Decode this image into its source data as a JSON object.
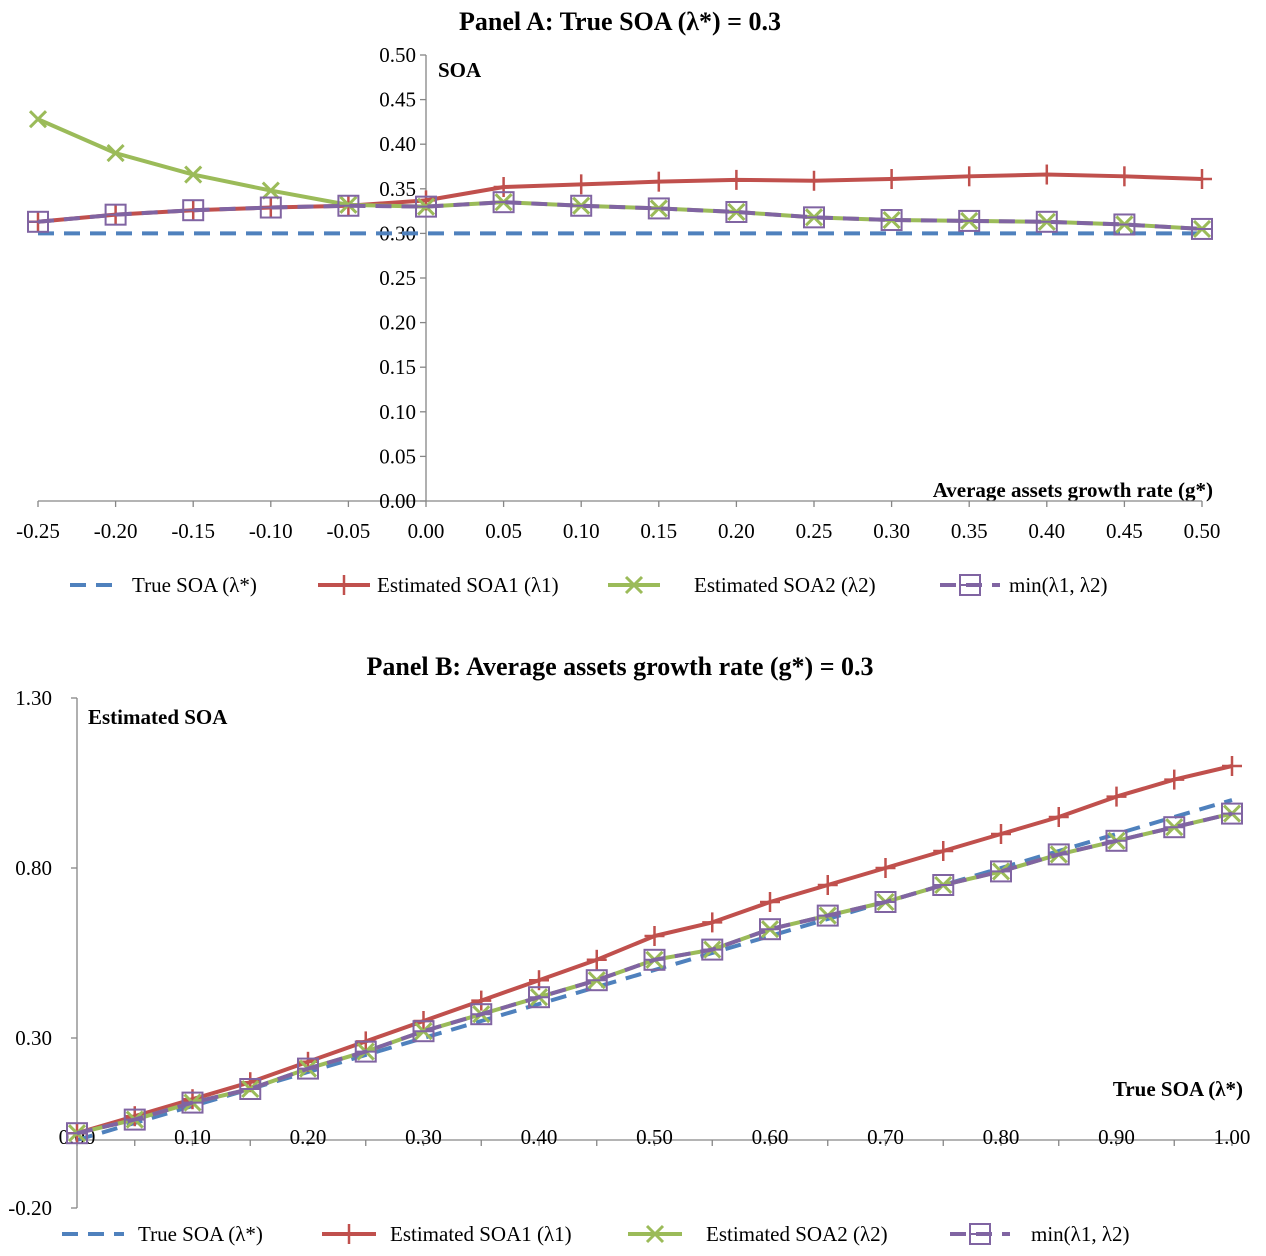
{
  "chart_data": [
    {
      "type": "line",
      "title": "Panel A: True SOA (λ*) = 0.3",
      "xlabel": "Average assets growth rate (g*)",
      "ylabel": "SOA",
      "x": [
        -0.25,
        -0.2,
        -0.15,
        -0.1,
        -0.05,
        0.0,
        0.05,
        0.1,
        0.15,
        0.2,
        0.25,
        0.3,
        0.35,
        0.4,
        0.45,
        0.5
      ],
      "x_tick_labels": [
        "-0.25",
        "-0.20",
        "-0.15",
        "-0.10",
        "-0.05",
        "0.00",
        "0.05",
        "0.10",
        "0.15",
        "0.20",
        "0.25",
        "0.30",
        "0.35",
        "0.40",
        "0.45",
        "0.50"
      ],
      "y_ticks": [
        0.0,
        0.05,
        0.1,
        0.15,
        0.2,
        0.25,
        0.3,
        0.35,
        0.4,
        0.45,
        0.5
      ],
      "y_tick_labels": [
        "0.00",
        "0.05",
        "0.10",
        "0.15",
        "0.20",
        "0.25",
        "0.30",
        "0.35",
        "0.40",
        "0.45",
        "0.50"
      ],
      "ylim": [
        0,
        0.5
      ],
      "grid": false,
      "legend_position": "bottom",
      "series": [
        {
          "name": "True SOA (λ*)",
          "color": "#4f81bd",
          "style": "dash",
          "marker": "none",
          "values": [
            0.3,
            0.3,
            0.3,
            0.3,
            0.3,
            0.3,
            0.3,
            0.3,
            0.3,
            0.3,
            0.3,
            0.3,
            0.3,
            0.3,
            0.3,
            0.3
          ]
        },
        {
          "name": "Estimated SOA1 (λ1)",
          "color": "#c0504d",
          "style": "solid",
          "marker": "plus",
          "values": [
            0.313,
            0.321,
            0.326,
            0.329,
            0.331,
            0.337,
            0.352,
            0.355,
            0.358,
            0.36,
            0.359,
            0.361,
            0.364,
            0.366,
            0.364,
            0.361
          ]
        },
        {
          "name": "Estimated SOA2 (λ2)",
          "color": "#9bbb59",
          "style": "solid",
          "marker": "x",
          "values": [
            0.428,
            0.39,
            0.366,
            0.348,
            0.332,
            0.33,
            0.335,
            0.331,
            0.328,
            0.324,
            0.318,
            0.315,
            0.314,
            0.313,
            0.31,
            0.305
          ]
        },
        {
          "name": "min(λ1, λ2)",
          "color": "#8064a2",
          "style": "dash",
          "marker": "square",
          "values": [
            0.313,
            0.321,
            0.326,
            0.329,
            0.331,
            0.33,
            0.335,
            0.331,
            0.328,
            0.324,
            0.318,
            0.315,
            0.314,
            0.313,
            0.31,
            0.305
          ]
        }
      ]
    },
    {
      "type": "line",
      "title": "Panel B: Average assets growth rate (g*) = 0.3",
      "xlabel": "True SOA (λ*)",
      "ylabel": "Estimated SOA",
      "x": [
        0.0,
        0.05,
        0.1,
        0.15,
        0.2,
        0.25,
        0.3,
        0.35,
        0.4,
        0.45,
        0.5,
        0.55,
        0.6,
        0.65,
        0.7,
        0.75,
        0.8,
        0.85,
        0.9,
        0.95,
        1.0
      ],
      "x_tick_labels": [
        "0.00",
        "0.10",
        "0.20",
        "0.30",
        "0.40",
        "0.50",
        "0.60",
        "0.70",
        "0.80",
        "0.90",
        "1.00"
      ],
      "y_ticks": [
        -0.2,
        0.3,
        0.8,
        1.3
      ],
      "y_tick_labels": [
        "-0.20",
        "0.30",
        "0.80",
        "1.30"
      ],
      "ylim": [
        -0.2,
        1.3
      ],
      "grid": false,
      "legend_position": "bottom",
      "series": [
        {
          "name": "True SOA (λ*)",
          "color": "#4f81bd",
          "style": "dash",
          "marker": "none",
          "values": [
            0.0,
            0.05,
            0.1,
            0.15,
            0.2,
            0.25,
            0.3,
            0.35,
            0.4,
            0.45,
            0.5,
            0.55,
            0.6,
            0.65,
            0.7,
            0.75,
            0.8,
            0.85,
            0.9,
            0.95,
            1.0
          ]
        },
        {
          "name": "Estimated SOA1 (λ1)",
          "color": "#c0504d",
          "style": "solid",
          "marker": "plus",
          "values": [
            0.02,
            0.07,
            0.12,
            0.17,
            0.23,
            0.29,
            0.35,
            0.41,
            0.47,
            0.53,
            0.6,
            0.64,
            0.7,
            0.75,
            0.8,
            0.85,
            0.9,
            0.95,
            1.01,
            1.06,
            1.1
          ]
        },
        {
          "name": "Estimated SOA2 (λ2)",
          "color": "#9bbb59",
          "style": "solid",
          "marker": "x",
          "values": [
            0.02,
            0.06,
            0.11,
            0.15,
            0.21,
            0.26,
            0.32,
            0.37,
            0.42,
            0.47,
            0.53,
            0.56,
            0.62,
            0.66,
            0.7,
            0.75,
            0.79,
            0.84,
            0.88,
            0.92,
            0.96
          ]
        },
        {
          "name": "min(λ1, λ2)",
          "color": "#8064a2",
          "style": "dash",
          "marker": "square",
          "values": [
            0.02,
            0.06,
            0.11,
            0.15,
            0.21,
            0.26,
            0.32,
            0.37,
            0.42,
            0.47,
            0.53,
            0.56,
            0.62,
            0.66,
            0.7,
            0.75,
            0.79,
            0.84,
            0.88,
            0.92,
            0.96
          ]
        }
      ]
    }
  ]
}
